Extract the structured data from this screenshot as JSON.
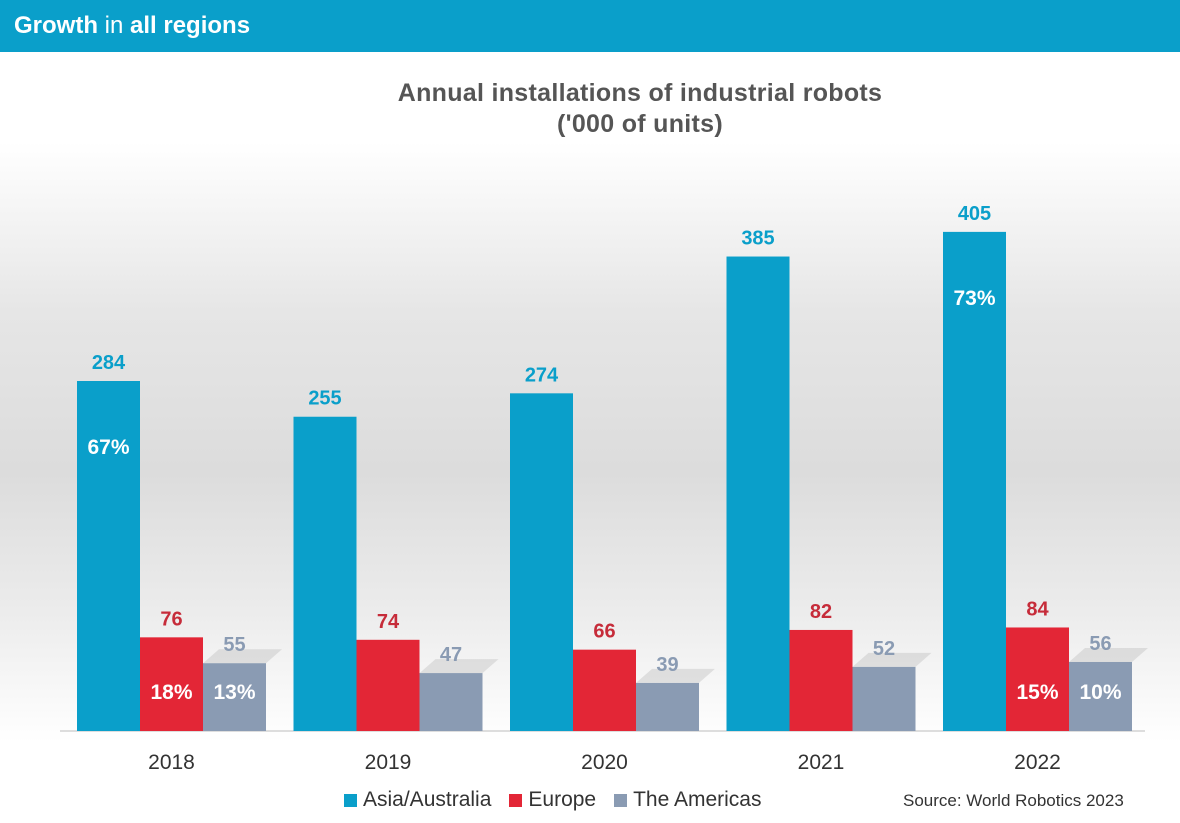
{
  "header": {
    "part1": "Growth",
    "part2": " in ",
    "part3": "all regions"
  },
  "source": "Source: World Robotics 2023",
  "colors": {
    "header_bg": "#0a9fca",
    "asia": "#0a9fca",
    "europe": "#e32636",
    "americas": "#8a9bb3"
  },
  "chart_data": {
    "type": "bar",
    "title": "Annual installations of industrial robots",
    "subtitle": "('000 of units)",
    "categories": [
      "2018",
      "2019",
      "2020",
      "2021",
      "2022"
    ],
    "series": [
      {
        "name": "Asia/Australia",
        "color": "#0a9fca",
        "values": [
          284,
          255,
          274,
          385,
          405
        ],
        "shares": [
          "67%",
          "",
          "",
          "",
          "73%"
        ]
      },
      {
        "name": "Europe",
        "color": "#e32636",
        "values": [
          76,
          74,
          66,
          82,
          84
        ],
        "shares": [
          "18%",
          "",
          "",
          "",
          "15%"
        ]
      },
      {
        "name": "The Americas",
        "color": "#8a9bb3",
        "values": [
          55,
          47,
          39,
          52,
          56
        ],
        "shares": [
          "13%",
          "",
          "",
          "",
          "10%"
        ]
      }
    ],
    "ylim": [
      0,
      450
    ],
    "grid": false,
    "legend": "bottom"
  }
}
